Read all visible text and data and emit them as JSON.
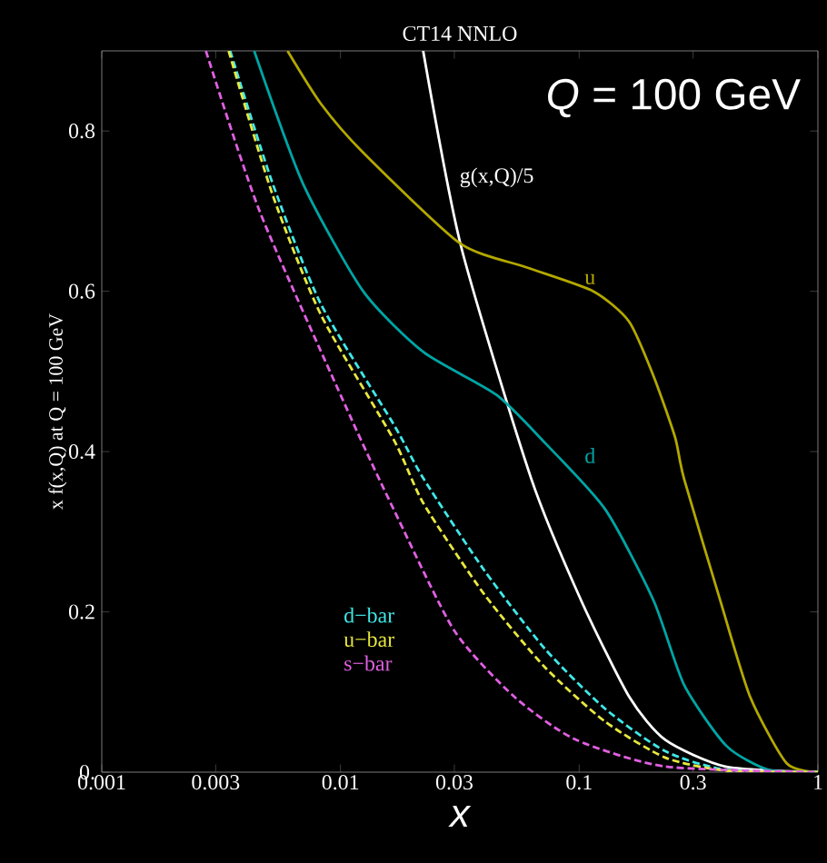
{
  "chart_data": {
    "type": "line",
    "title": "CT14 NNLO",
    "xlabel": "x",
    "ylabel": "x f(x,Q) at Q = 100 GeV",
    "annotations": [
      "*Q* = 100 GeV"
    ],
    "log": "x",
    "xlim": [
      0.001,
      1
    ],
    "ylim": [
      0,
      0.9
    ],
    "xticks": [
      0.001,
      0.003,
      0.01,
      0.03,
      0.1,
      0.3,
      1
    ],
    "yticks": [
      {
        "value": 0,
        "label": "0."
      },
      0.2,
      0.4,
      0.6,
      0.8
    ],
    "grid": false,
    "series": [
      {
        "name": "g(x,Q)/5",
        "color": "#ffffff",
        "line_style": "solid",
        "x": [
          0.0222,
          0.032,
          0.063,
          0.102,
          0.162,
          0.23,
          0.41,
          1
        ],
        "values": [
          0.9,
          0.656,
          0.366,
          0.214,
          0.094,
          0.04,
          0.007,
          0
        ]
      },
      {
        "name": "u",
        "color": "#b3a800",
        "line_style": "solid",
        "x": [
          0.006,
          0.00828,
          0.01245,
          0.0316,
          0.06,
          0.1146,
          0.162,
          0.205,
          0.252,
          0.275,
          0.39,
          0.52,
          0.74,
          1
        ],
        "values": [
          0.9,
          0.834,
          0.773,
          0.66,
          0.63,
          0.6,
          0.562,
          0.494,
          0.418,
          0.366,
          0.214,
          0.094,
          0.011,
          0
        ]
      },
      {
        "name": "d",
        "color": "#00a5a5",
        "line_style": "solid",
        "x": [
          0.00435,
          0.00695,
          0.01245,
          0.0223,
          0.0449,
          0.0718,
          0.1285,
          0.205,
          0.275,
          0.413,
          0.62,
          1
        ],
        "values": [
          0.9,
          0.735,
          0.6,
          0.524,
          0.471,
          0.411,
          0.328,
          0.214,
          0.109,
          0.033,
          0.003,
          0
        ]
      },
      {
        "name": "d−bar",
        "color": "#40e8e8",
        "line_style": "dashed",
        "x": [
          0.00345,
          0.00519,
          0.00828,
          0.0167,
          0.0223,
          0.04,
          0.0718,
          0.1285,
          0.23,
          0.41,
          1
        ],
        "values": [
          0.9,
          0.735,
          0.584,
          0.434,
          0.366,
          0.252,
          0.154,
          0.079,
          0.026,
          0.003,
          0
        ]
      },
      {
        "name": "u−bar",
        "color": "#e8e840",
        "line_style": "dashed",
        "x": [
          0.0034,
          0.0052,
          0.0083,
          0.0167,
          0.0223,
          0.04,
          0.0718,
          0.1285,
          0.23,
          0.41,
          1
        ],
        "values": [
          0.9,
          0.72,
          0.57,
          0.415,
          0.335,
          0.222,
          0.131,
          0.063,
          0.018,
          0.002,
          0
        ]
      },
      {
        "name": "s−bar",
        "color": "#e060e0",
        "line_style": "dashed",
        "x": [
          0.00273,
          0.00461,
          0.0111,
          0.0167,
          0.0299,
          0.0535,
          0.096,
          0.23,
          1
        ],
        "values": [
          0.9,
          0.698,
          0.441,
          0.328,
          0.177,
          0.094,
          0.041,
          0.007,
          0
        ]
      }
    ]
  }
}
